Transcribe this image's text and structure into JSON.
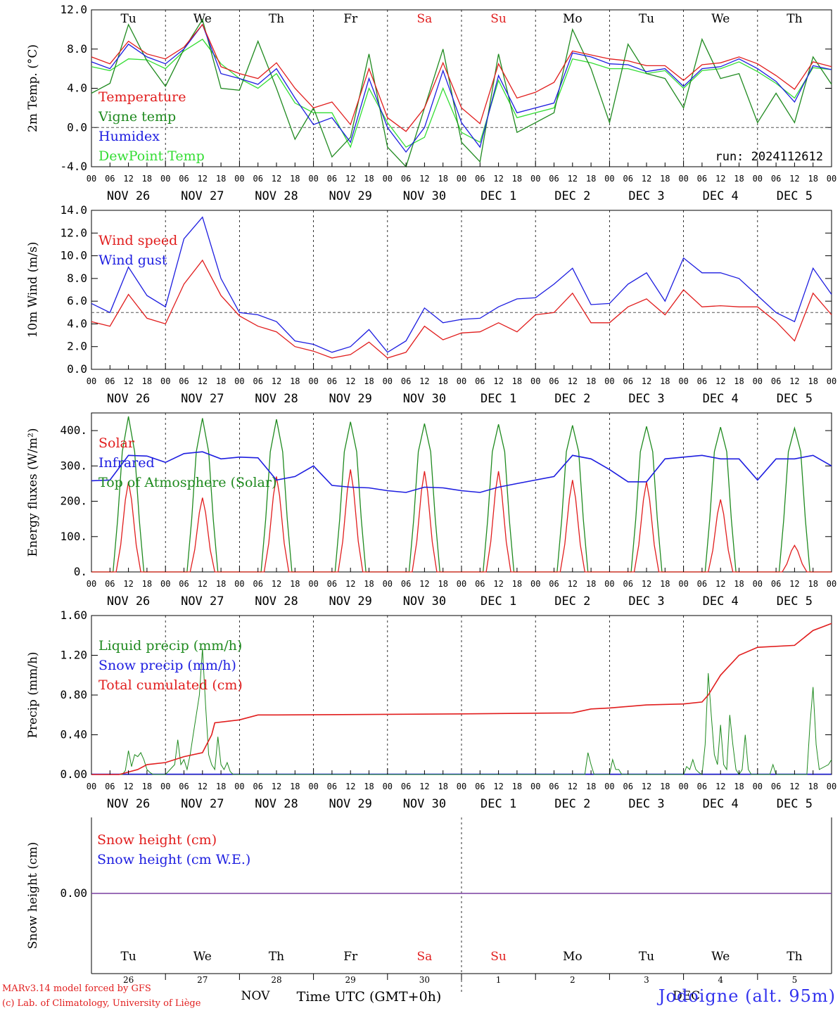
{
  "colors": {
    "red": "#e11d1d",
    "green": "#1f8a1f",
    "blue": "#1d1de0",
    "lightgreen": "#33dd33",
    "purple": "#7a3fa0",
    "footer": "#3333ee"
  },
  "days": [
    "Tu",
    "We",
    "Th",
    "Fr",
    "Sa",
    "Su",
    "Mo",
    "Tu",
    "We",
    "Th"
  ],
  "weekend_days": [
    4,
    5
  ],
  "dates": [
    "NOV 26",
    "NOV 27",
    "NOV 28",
    "NOV 29",
    "NOV 30",
    "DEC  1",
    "DEC  2",
    "DEC  3",
    "DEC  4",
    "DEC  5"
  ],
  "hour_labels": [
    "00",
    "06",
    "12",
    "18"
  ],
  "hour_end": "00",
  "run_label": "run: 2024112612",
  "chart_data": [
    {
      "type": "line",
      "ylabel": "2m Temp. (°C)",
      "ylim": [
        -4,
        12
      ],
      "yticks": [
        "12.0",
        "8.0",
        "4.0",
        "0.0",
        "-4.0"
      ],
      "ref_line": 0,
      "legend": [
        "Temperature",
        "Vigne temp",
        "Humidex",
        "DewPoint Temp"
      ],
      "series": [
        {
          "name": "Temperature",
          "color": "red",
          "x": [
            0,
            6,
            12,
            18,
            24,
            30,
            36,
            42,
            48,
            54,
            60,
            66,
            72,
            78,
            84,
            90,
            96,
            102,
            108,
            114,
            120,
            126,
            132,
            138,
            144,
            150,
            156,
            162,
            168,
            174,
            180,
            186,
            192,
            198,
            204,
            210,
            216,
            222,
            228,
            234,
            240
          ],
          "y": [
            7.2,
            6.5,
            8.8,
            7.5,
            7.0,
            8.2,
            10.5,
            6.2,
            5.5,
            5.0,
            6.6,
            4.0,
            2.0,
            2.6,
            0.3,
            6.0,
            1.0,
            -0.4,
            2.0,
            6.6,
            2.0,
            0.4,
            6.5,
            3.0,
            3.6,
            4.6,
            7.8,
            7.4,
            7.0,
            6.8,
            6.3,
            6.3,
            4.8,
            6.4,
            6.6,
            7.2,
            6.5,
            5.3,
            3.9,
            6.7,
            6.2
          ]
        },
        {
          "name": "Vigne temp",
          "color": "green",
          "x": [
            0,
            6,
            12,
            18,
            24,
            30,
            36,
            42,
            48,
            54,
            60,
            66,
            72,
            78,
            84,
            90,
            96,
            102,
            108,
            114,
            120,
            126,
            132,
            138,
            144,
            150,
            156,
            162,
            168,
            174,
            180,
            186,
            192,
            198,
            204,
            210,
            216,
            222,
            228,
            234,
            240
          ],
          "y": [
            3.5,
            4.5,
            10.5,
            6.8,
            4.2,
            8.0,
            11.0,
            4.0,
            3.8,
            8.8,
            4.0,
            -1.2,
            2.0,
            -3.0,
            -1.0,
            7.5,
            -2.0,
            -4.0,
            2.0,
            8.0,
            -1.5,
            -3.5,
            7.5,
            -0.5,
            0.5,
            1.5,
            10.0,
            6.0,
            0.5,
            8.5,
            5.5,
            5.0,
            2.0,
            9.0,
            5.0,
            5.5,
            0.5,
            3.5,
            0.5,
            7.2,
            4.4
          ]
        },
        {
          "name": "Humidex",
          "color": "blue",
          "x": [
            0,
            6,
            12,
            18,
            24,
            30,
            36,
            42,
            48,
            54,
            60,
            66,
            72,
            78,
            84,
            90,
            96,
            102,
            108,
            114,
            120,
            126,
            132,
            138,
            144,
            150,
            156,
            162,
            168,
            174,
            180,
            186,
            192,
            198,
            204,
            210,
            216,
            222,
            228,
            234,
            240
          ],
          "y": [
            6.7,
            6.0,
            8.5,
            7.2,
            6.5,
            8.0,
            10.5,
            5.5,
            5.0,
            4.4,
            6.0,
            3.0,
            0.3,
            1.0,
            -1.5,
            5.0,
            0.0,
            -2.5,
            0.0,
            5.8,
            0.5,
            -2.0,
            5.3,
            1.5,
            2.0,
            2.5,
            7.6,
            7.2,
            6.5,
            6.4,
            5.7,
            6.0,
            4.2,
            6.0,
            6.2,
            7.0,
            6.0,
            4.7,
            2.6,
            6.3,
            5.9
          ]
        },
        {
          "name": "DewPoint Temp",
          "color": "lightgreen",
          "x": [
            0,
            6,
            12,
            18,
            24,
            30,
            36,
            42,
            48,
            54,
            60,
            66,
            72,
            78,
            84,
            90,
            96,
            102,
            108,
            114,
            120,
            126,
            132,
            138,
            144,
            150,
            156,
            162,
            168,
            174,
            180,
            186,
            192,
            198,
            204,
            210,
            216,
            222,
            228,
            234,
            240
          ],
          "y": [
            6.2,
            5.8,
            7.0,
            6.9,
            6.0,
            7.8,
            9.0,
            6.5,
            5.0,
            4.0,
            5.5,
            2.5,
            1.5,
            1.5,
            -2.0,
            4.0,
            0.5,
            -2.0,
            -1.0,
            4.0,
            -0.5,
            -1.5,
            4.8,
            1.0,
            1.5,
            2.0,
            7.0,
            6.6,
            6.0,
            6.0,
            5.5,
            5.8,
            4.0,
            5.8,
            6.0,
            6.7,
            5.7,
            4.5,
            3.0,
            6.1,
            5.9
          ]
        }
      ]
    },
    {
      "type": "line",
      "ylabel": "10m Wind (m/s)",
      "ylim": [
        0,
        14
      ],
      "yticks": [
        "14.0",
        "12.0",
        "10.0",
        "8.0",
        "6.0",
        "4.0",
        "2.0",
        "0.0"
      ],
      "ref_line": 5,
      "legend": [
        "Wind speed",
        "Wind gust"
      ],
      "series": [
        {
          "name": "Wind speed",
          "color": "red",
          "x": [
            0,
            6,
            12,
            18,
            24,
            30,
            36,
            42,
            48,
            54,
            60,
            66,
            72,
            78,
            84,
            90,
            96,
            102,
            108,
            114,
            120,
            126,
            132,
            138,
            144,
            150,
            156,
            162,
            168,
            174,
            180,
            186,
            192,
            198,
            204,
            210,
            216,
            222,
            228,
            234,
            240
          ],
          "y": [
            4.2,
            3.8,
            6.6,
            4.5,
            4.0,
            7.5,
            9.6,
            6.5,
            4.7,
            3.8,
            3.3,
            2.0,
            1.6,
            1.0,
            1.3,
            2.4,
            1.0,
            1.5,
            3.8,
            2.6,
            3.2,
            3.3,
            4.1,
            3.3,
            4.8,
            5.0,
            6.7,
            4.1,
            4.1,
            5.5,
            6.2,
            4.8,
            7.0,
            5.5,
            5.6,
            5.5,
            5.5,
            4.2,
            2.5,
            6.7,
            4.8
          ]
        },
        {
          "name": "Wind gust",
          "color": "blue",
          "x": [
            0,
            6,
            12,
            18,
            24,
            30,
            36,
            42,
            48,
            54,
            60,
            66,
            72,
            78,
            84,
            90,
            96,
            102,
            108,
            114,
            120,
            126,
            132,
            138,
            144,
            150,
            156,
            162,
            168,
            174,
            180,
            186,
            192,
            198,
            204,
            210,
            216,
            222,
            228,
            234,
            240
          ],
          "y": [
            5.8,
            5.0,
            9.0,
            6.5,
            5.5,
            11.5,
            13.4,
            8.0,
            5.0,
            4.8,
            4.2,
            2.5,
            2.2,
            1.5,
            2.0,
            3.5,
            1.5,
            2.5,
            5.4,
            4.1,
            4.4,
            4.5,
            5.5,
            6.2,
            6.3,
            7.5,
            8.9,
            5.7,
            5.8,
            7.5,
            8.5,
            6.0,
            9.8,
            8.5,
            8.5,
            8.0,
            6.5,
            5.0,
            4.2,
            8.9,
            6.6
          ]
        }
      ]
    },
    {
      "type": "line",
      "ylabel": "Energy fluxes (W/m²)",
      "ylim": [
        0,
        450
      ],
      "yticks": [
        "400.",
        "300.",
        "200.",
        "100.",
        "0."
      ],
      "legend": [
        "Solar",
        "Infrared",
        "Top of Atmosphere (Solar)"
      ],
      "peaks_solar": [
        255,
        210,
        270,
        290,
        285,
        285,
        260,
        255,
        205,
        75
      ],
      "peaks_toa": [
        440,
        435,
        432,
        425,
        420,
        418,
        415,
        412,
        410,
        407
      ],
      "series": [
        {
          "name": "Infrared",
          "color": "blue",
          "x": [
            0,
            6,
            12,
            18,
            24,
            30,
            36,
            42,
            48,
            54,
            60,
            66,
            72,
            78,
            84,
            90,
            96,
            102,
            108,
            114,
            120,
            126,
            132,
            138,
            144,
            150,
            156,
            162,
            168,
            174,
            180,
            186,
            192,
            198,
            204,
            210,
            216,
            222,
            228,
            234,
            240
          ],
          "y": [
            258,
            260,
            330,
            328,
            310,
            335,
            340,
            320,
            325,
            323,
            260,
            270,
            300,
            245,
            240,
            238,
            230,
            225,
            240,
            238,
            230,
            225,
            240,
            250,
            260,
            270,
            330,
            320,
            290,
            255,
            255,
            320,
            325,
            330,
            320,
            320,
            260,
            320,
            320,
            330,
            300
          ]
        }
      ]
    },
    {
      "type": "line",
      "ylabel": "Precip (mm/h)",
      "ylim": [
        0,
        1.6
      ],
      "yticks": [
        "1.60",
        "1.20",
        "0.80",
        "0.40",
        "0.00"
      ],
      "legend": [
        "Liquid precip (mm/h)",
        "Snow precip (mm/h)",
        "Total cumulated (cm)"
      ],
      "series": [
        {
          "name": "Total cumulated (cm)",
          "color": "red",
          "x": [
            0,
            9,
            15,
            18,
            24,
            30,
            36,
            39,
            40,
            48,
            54,
            60,
            120,
            156,
            162,
            168,
            180,
            192,
            198,
            200,
            204,
            210,
            216,
            228,
            234,
            240
          ],
          "y": [
            0,
            0,
            0.05,
            0.1,
            0.12,
            0.18,
            0.22,
            0.4,
            0.52,
            0.55,
            0.6,
            0.6,
            0.61,
            0.62,
            0.66,
            0.67,
            0.7,
            0.71,
            0.73,
            0.8,
            1.0,
            1.2,
            1.28,
            1.3,
            1.45,
            1.52
          ]
        },
        {
          "name": "Liquid precip (mm/h)",
          "color": "green",
          "x": [
            0,
            10,
            11,
            12,
            13,
            14,
            15,
            16,
            17,
            18,
            19,
            20,
            21,
            22,
            23,
            24,
            27,
            28,
            29,
            30,
            31,
            32,
            33,
            34,
            35,
            36,
            37,
            38,
            39,
            40,
            41,
            42,
            43,
            44,
            45,
            46,
            47,
            48,
            160,
            161,
            162,
            163,
            168,
            169,
            170,
            171,
            172,
            192,
            193,
            194,
            195,
            196,
            197,
            198,
            199,
            200,
            201,
            202,
            203,
            204,
            205,
            206,
            207,
            208,
            209,
            210,
            211,
            212,
            213,
            214,
            220,
            221,
            222,
            232,
            233,
            234,
            235,
            236,
            239,
            240
          ],
          "y": [
            0,
            0,
            0.04,
            0.24,
            0.08,
            0.2,
            0.18,
            0.22,
            0.15,
            0.05,
            0.02,
            0,
            0,
            0,
            0,
            0,
            0.1,
            0.35,
            0.1,
            0.15,
            0.05,
            0.2,
            0.4,
            0.6,
            0.8,
            1.27,
            0.7,
            0.2,
            0.1,
            0.05,
            0.38,
            0.1,
            0.05,
            0.12,
            0.03,
            0,
            0,
            0,
            0,
            0.22,
            0.1,
            0,
            0,
            0.15,
            0.05,
            0.05,
            0,
            0,
            0.08,
            0.05,
            0.15,
            0.05,
            0.02,
            0,
            0.3,
            1.02,
            0.6,
            0.2,
            0.1,
            0.5,
            0.1,
            0.05,
            0.6,
            0.3,
            0.05,
            0,
            0.05,
            0.4,
            0.05,
            0,
            0,
            0.1,
            0,
            0,
            0.5,
            0.88,
            0.3,
            0.05,
            0.1,
            0.15
          ]
        }
      ]
    },
    {
      "type": "line",
      "ylabel": "Snow height (cm)",
      "yticks": [
        "0.00"
      ],
      "legend": [
        "Snow height (cm)",
        "Snow height (cm W.E.)"
      ],
      "series": [
        {
          "name": "Snow height (cm)",
          "x": [
            0,
            240
          ],
          "y": [
            0,
            0
          ]
        },
        {
          "name": "Snow height (cm W.E.)",
          "x": [
            0,
            240
          ],
          "y": [
            0,
            0
          ]
        }
      ],
      "day_numbers": [
        "26",
        "27",
        "28",
        "29",
        "30",
        "1",
        "2",
        "3",
        "4",
        "5"
      ],
      "month_labels": [
        "NOV",
        "DEC"
      ],
      "xlabel": "Time UTC (GMT+0h)"
    }
  ],
  "footer": {
    "line1": "MARv3.14 model forced by GFS",
    "line2": "(c) Lab. of Climatology, University of Liège",
    "station": "Jodoigne (alt. 95m)"
  }
}
